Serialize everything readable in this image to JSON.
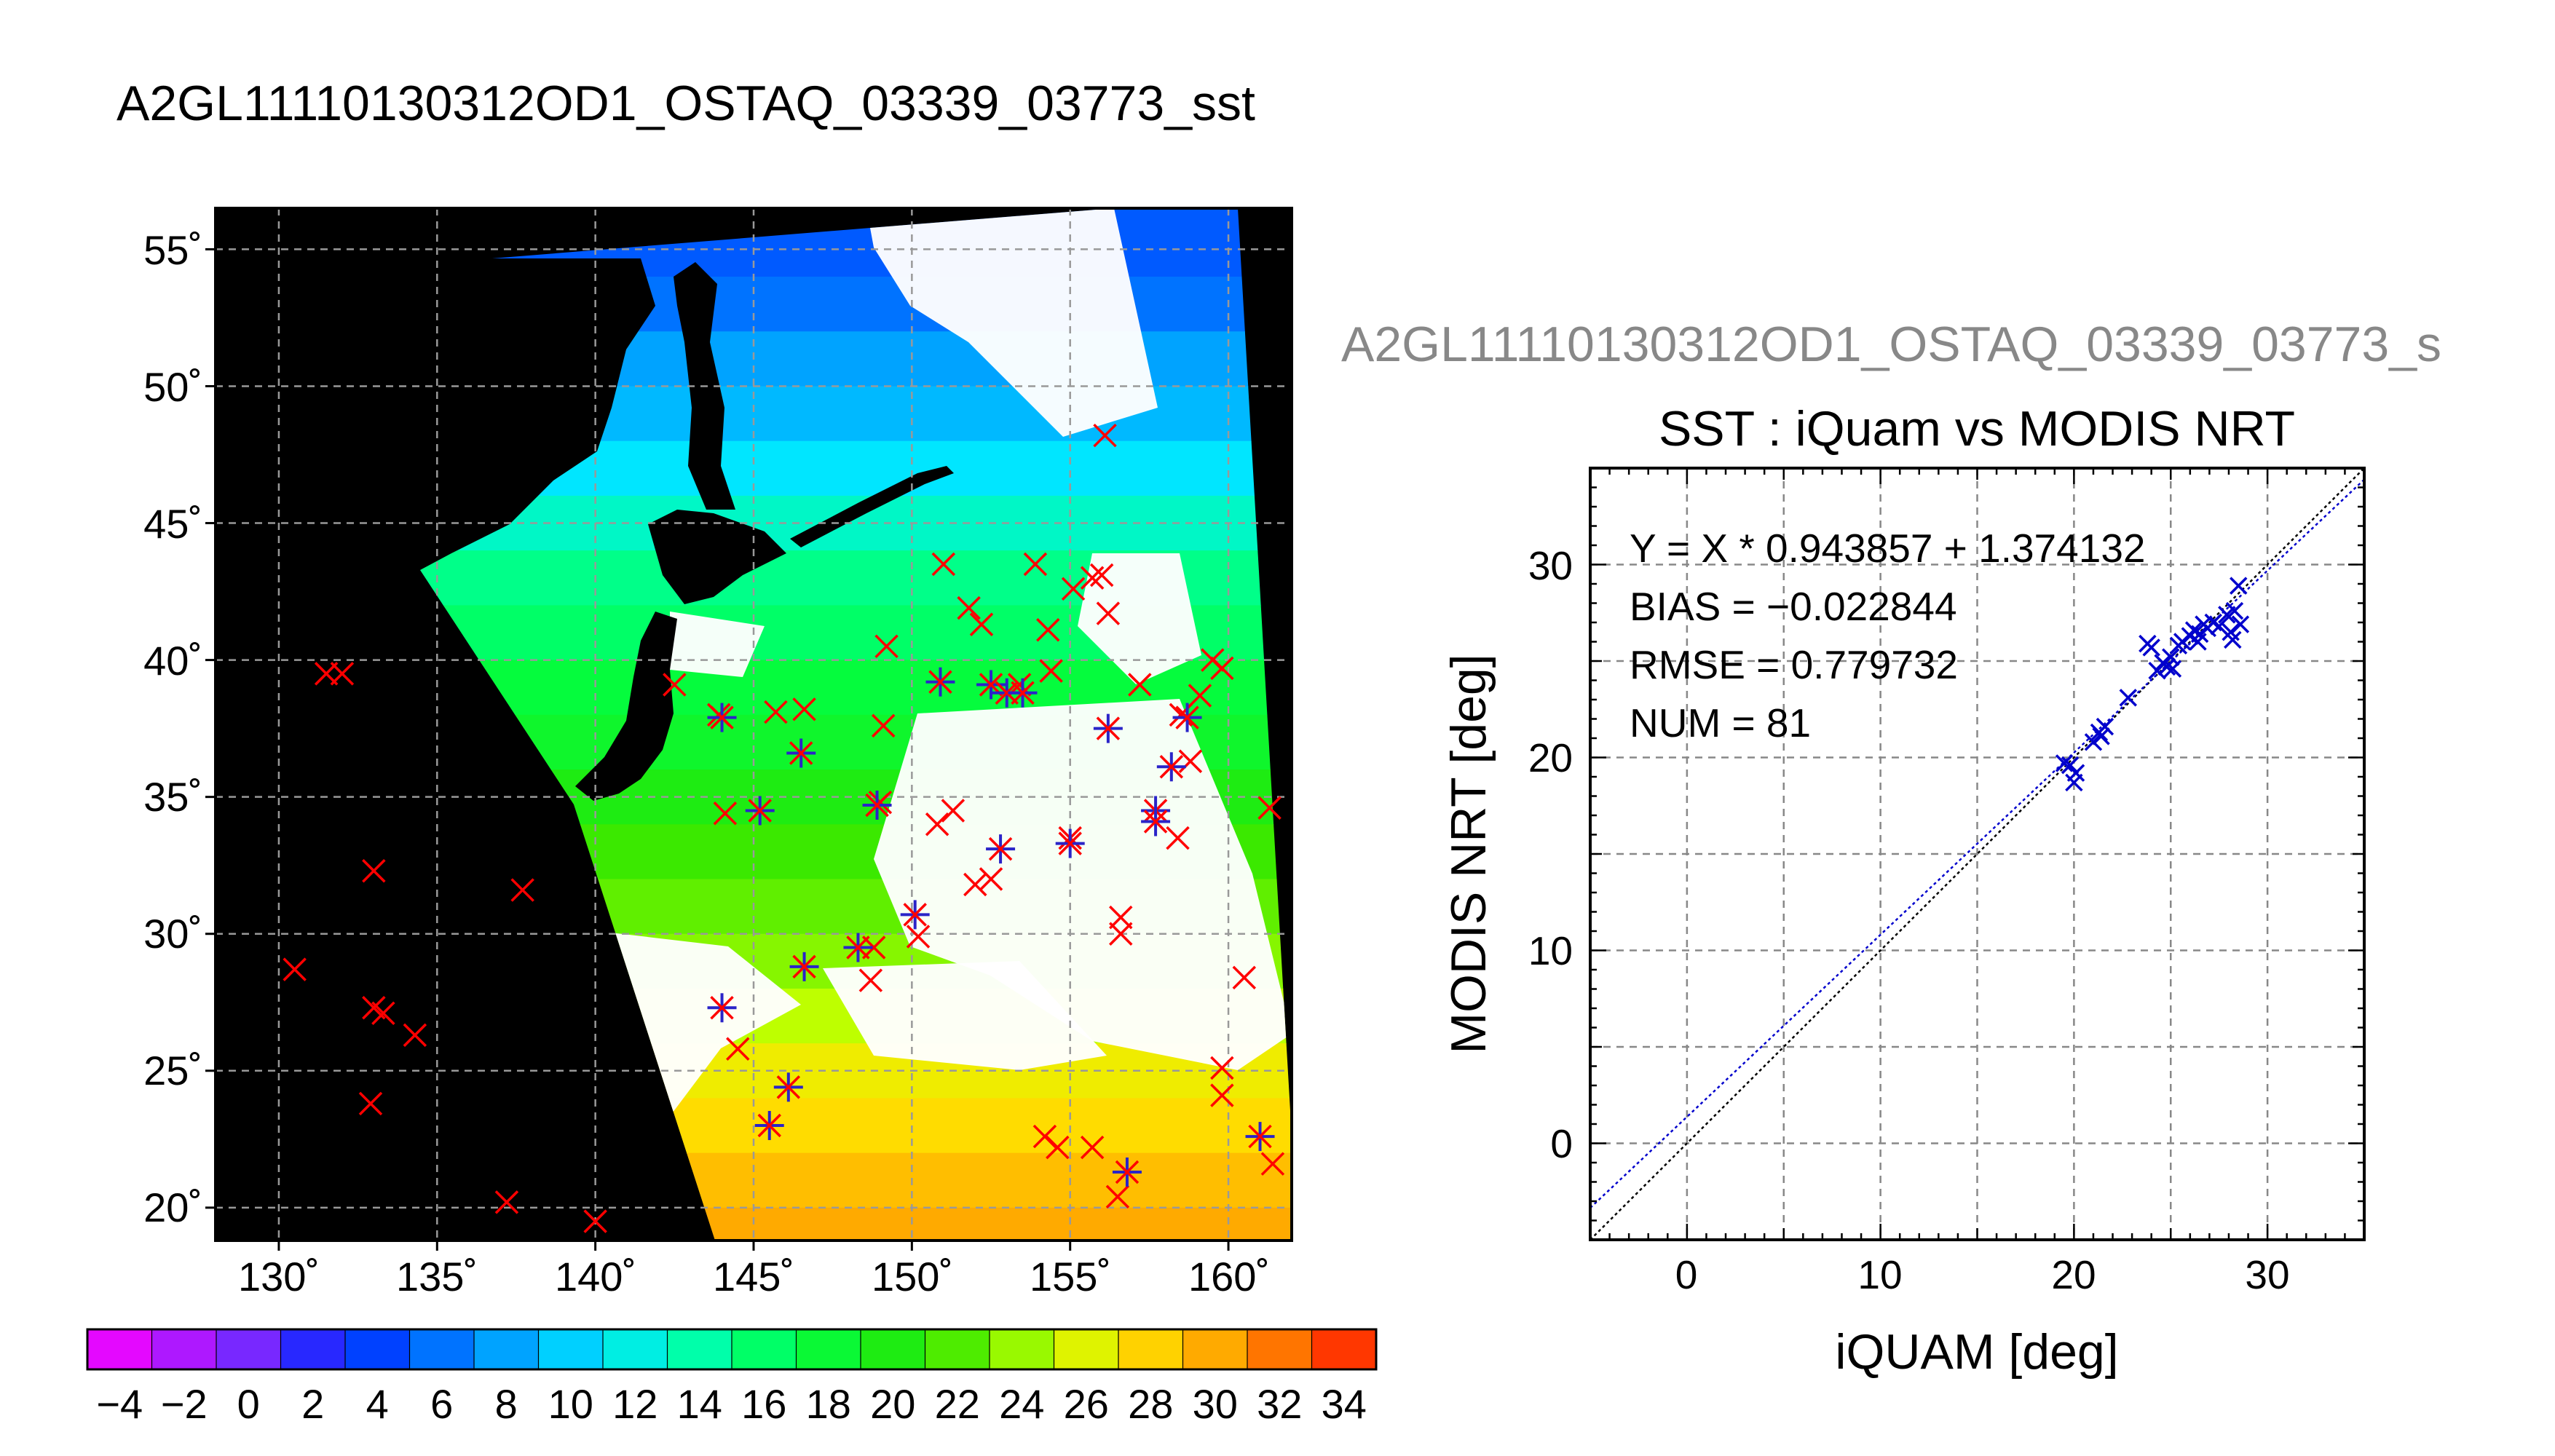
{
  "title": "A2GL11110130312OD1_OSTAQ_03339_03773_sst",
  "map": {
    "lat_ticks": [
      "55˚",
      "50˚",
      "45˚",
      "40˚",
      "35˚",
      "30˚",
      "25˚",
      "20˚"
    ],
    "lon_ticks": [
      "130˚",
      "135˚",
      "140˚",
      "145˚",
      "150˚",
      "155˚",
      "160˚"
    ],
    "colorbar_ticks": [
      "−4",
      "−2",
      "0",
      "2",
      "4",
      "6",
      "8",
      "10",
      "12",
      "14",
      "16",
      "18",
      "20",
      "22",
      "24",
      "26",
      "28",
      "30",
      "32",
      "34"
    ]
  },
  "scatter": {
    "subtitle": "A2GL11110130312OD1_OSTAQ_03339_03773_s",
    "title": "SST : iQuam vs MODIS NRT",
    "xlabel": "iQUAM [deg]",
    "ylabel": "MODIS NRT [deg]",
    "eq_line": "Y = X * 0.943857 + 1.374132",
    "bias_line": "BIAS = −0.022844",
    "rmse_line": "RMSE = 0.779732",
    "num_line": "NUM = 81",
    "xticks": [
      "0",
      "10",
      "20",
      "30"
    ],
    "yticks": [
      "0",
      "10",
      "20",
      "30"
    ]
  },
  "chart_data": [
    {
      "type": "heatmap",
      "title": "A2GL11110130312OD1_OSTAQ_03339_03773_sst",
      "xlim": [
        128,
        162
      ],
      "ylim": [
        18.8,
        56.5
      ],
      "x_ticks": [
        130,
        135,
        140,
        145,
        150,
        155,
        160
      ],
      "y_ticks": [
        20,
        25,
        30,
        35,
        40,
        45,
        50,
        55
      ],
      "colorbar": {
        "min": -5,
        "max": 35,
        "step": 2,
        "label_start": -4,
        "label_end": 34
      },
      "colors": {
        "land": "#000000",
        "cloud": "#ffffff",
        "in_situ_marker": "#ff0000",
        "matchup_marker": "#2a24c8",
        "grid": "#999999"
      },
      "in_situ_points": [
        [
          131.5,
          39.5
        ],
        [
          132.0,
          39.5
        ],
        [
          133.0,
          32.3
        ],
        [
          130.5,
          28.7
        ],
        [
          133.0,
          27.3
        ],
        [
          133.3,
          27.1
        ],
        [
          134.3,
          26.3
        ],
        [
          132.9,
          23.8
        ],
        [
          137.7,
          31.6
        ],
        [
          137.2,
          20.2
        ],
        [
          140.0,
          19.5
        ],
        [
          142.5,
          39.1
        ],
        [
          143.9,
          38.0
        ],
        [
          145.7,
          38.1
        ],
        [
          144.1,
          34.4
        ],
        [
          149.1,
          37.6
        ],
        [
          149.2,
          40.5
        ],
        [
          151.0,
          43.5
        ],
        [
          151.8,
          41.9
        ],
        [
          152.2,
          41.3
        ],
        [
          153.9,
          43.5
        ],
        [
          154.3,
          41.1
        ],
        [
          155.1,
          42.6
        ],
        [
          155.7,
          43.0
        ],
        [
          156.0,
          43.1
        ],
        [
          156.2,
          41.7
        ],
        [
          156.1,
          48.2
        ],
        [
          153.4,
          39.1
        ],
        [
          154.4,
          39.6
        ],
        [
          157.2,
          39.1
        ],
        [
          158.5,
          38.0
        ],
        [
          159.1,
          38.7
        ],
        [
          159.5,
          40.0
        ],
        [
          159.8,
          39.7
        ],
        [
          158.8,
          36.3
        ],
        [
          161.3,
          34.6
        ],
        [
          160.5,
          28.4
        ],
        [
          156.6,
          30.6
        ],
        [
          156.6,
          30.0
        ],
        [
          159.8,
          25.1
        ],
        [
          159.8,
          24.1
        ],
        [
          154.2,
          22.6
        ],
        [
          154.6,
          22.2
        ],
        [
          155.7,
          22.2
        ],
        [
          156.5,
          20.4
        ],
        [
          152.0,
          31.8
        ],
        [
          150.8,
          34.0
        ],
        [
          151.3,
          34.5
        ],
        [
          155.0,
          33.5
        ],
        [
          158.4,
          33.5
        ],
        [
          150.2,
          29.9
        ],
        [
          148.8,
          29.5
        ],
        [
          148.7,
          28.3
        ],
        [
          144.5,
          25.8
        ],
        [
          152.5,
          32.0
        ],
        [
          149.0,
          34.8
        ],
        [
          146.6,
          38.2
        ],
        [
          161.4,
          21.6
        ]
      ],
      "matchup_points": [
        [
          150.9,
          39.2
        ],
        [
          152.5,
          39.1
        ],
        [
          153.0,
          38.8
        ],
        [
          153.5,
          38.8
        ],
        [
          156.2,
          37.5
        ],
        [
          158.7,
          37.9
        ],
        [
          158.2,
          36.1
        ],
        [
          157.7,
          34.5
        ],
        [
          157.7,
          34.1
        ],
        [
          146.5,
          36.6
        ],
        [
          145.2,
          34.5
        ],
        [
          148.9,
          34.7
        ],
        [
          155.0,
          33.3
        ],
        [
          152.8,
          33.1
        ],
        [
          150.1,
          30.7
        ],
        [
          148.3,
          29.5
        ],
        [
          146.6,
          28.8
        ],
        [
          144.0,
          27.3
        ],
        [
          146.1,
          24.4
        ],
        [
          145.5,
          23.0
        ],
        [
          156.8,
          21.3
        ],
        [
          161.0,
          22.6
        ],
        [
          144.0,
          37.9
        ]
      ]
    },
    {
      "type": "scatter",
      "title": "SST : iQuam vs MODIS NRT",
      "xlabel": "iQUAM [deg]",
      "ylabel": "MODIS NRT [deg]",
      "xlim": [
        -5,
        35
      ],
      "ylim": [
        -5,
        35
      ],
      "grid": true,
      "fit": {
        "slope": 0.943857,
        "intercept": 1.374132,
        "bias": -0.022844,
        "rmse": 0.779732,
        "num": 81
      },
      "colors": {
        "points": "#0000cc",
        "fit_line": "#0000cc",
        "identity_line": "#000000",
        "grid": "#888888"
      },
      "series": [
        {
          "x": [
            19.5,
            19.8,
            20.0,
            20.1,
            21.0,
            21.3,
            21.4,
            21.6,
            22.8,
            23.8,
            24.0,
            24.3,
            24.6,
            24.8,
            25.0,
            25.1,
            25.4,
            25.6,
            26.0,
            26.2,
            26.4,
            26.5,
            26.7,
            26.9,
            27.2,
            27.5,
            27.9,
            28.1,
            28.2,
            28.3,
            28.5,
            28.6
          ],
          "y": [
            19.7,
            19.6,
            18.7,
            19.2,
            20.8,
            21.3,
            21.1,
            21.6,
            23.1,
            25.9,
            25.7,
            24.5,
            24.9,
            24.7,
            25.2,
            24.6,
            25.8,
            26.0,
            26.3,
            26.6,
            26.0,
            26.4,
            26.9,
            26.7,
            27.0,
            26.8,
            27.4,
            26.5,
            26.1,
            27.6,
            28.9,
            26.9
          ]
        }
      ]
    }
  ]
}
